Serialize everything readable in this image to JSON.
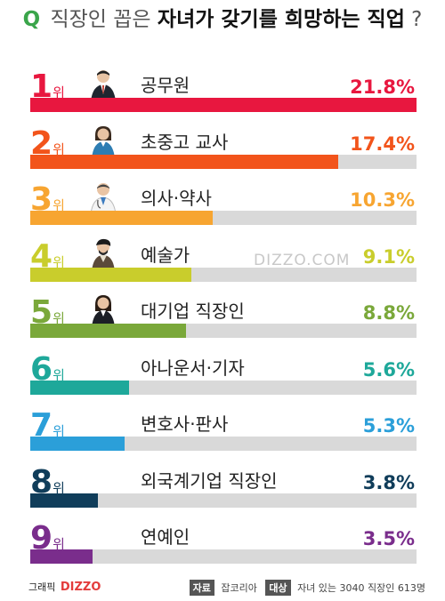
{
  "title": {
    "q": "Q",
    "part1": "직장인 꼽은 ",
    "part2": "자녀가 갖기를 희망하는 직업",
    "part3": "?"
  },
  "watermark": "DIZZO.COM",
  "chart_data": {
    "type": "bar",
    "orientation": "horizontal",
    "rank_suffix": "위",
    "categories": [
      "공무원",
      "초중고 교사",
      "의사·약사",
      "예술가",
      "대기업 직장인",
      "아나운서·기자",
      "변호사·판사",
      "외국계기업 직장인",
      "연예인"
    ],
    "ranks": [
      "1",
      "2",
      "3",
      "4",
      "5",
      "6",
      "7",
      "8",
      "9"
    ],
    "values": [
      21.8,
      17.4,
      10.3,
      9.1,
      8.8,
      5.6,
      5.3,
      3.8,
      3.5
    ],
    "labels": [
      "21.8%",
      "17.4%",
      "10.3%",
      "9.1%",
      "8.8%",
      "5.6%",
      "5.3%",
      "3.8%",
      "3.5%"
    ],
    "colors": [
      "#e8173f",
      "#f2541b",
      "#f7a531",
      "#c9cd2c",
      "#7aa83a",
      "#1ea89a",
      "#2b9fd9",
      "#103d5a",
      "#7a2d8c"
    ],
    "icons": [
      "businessman-icon",
      "female-teacher-icon",
      "doctor-icon",
      "artist-icon",
      "office-worker-icon",
      "",
      "",
      "",
      ""
    ],
    "xlim": [
      0,
      21.8
    ]
  },
  "footer": {
    "graphic_label": "그래픽",
    "brand": "DIZZO",
    "source_tag": "자료",
    "source": "잡코리아",
    "target_tag": "대상",
    "target": "자녀 있는 3040 직장인 613명"
  }
}
